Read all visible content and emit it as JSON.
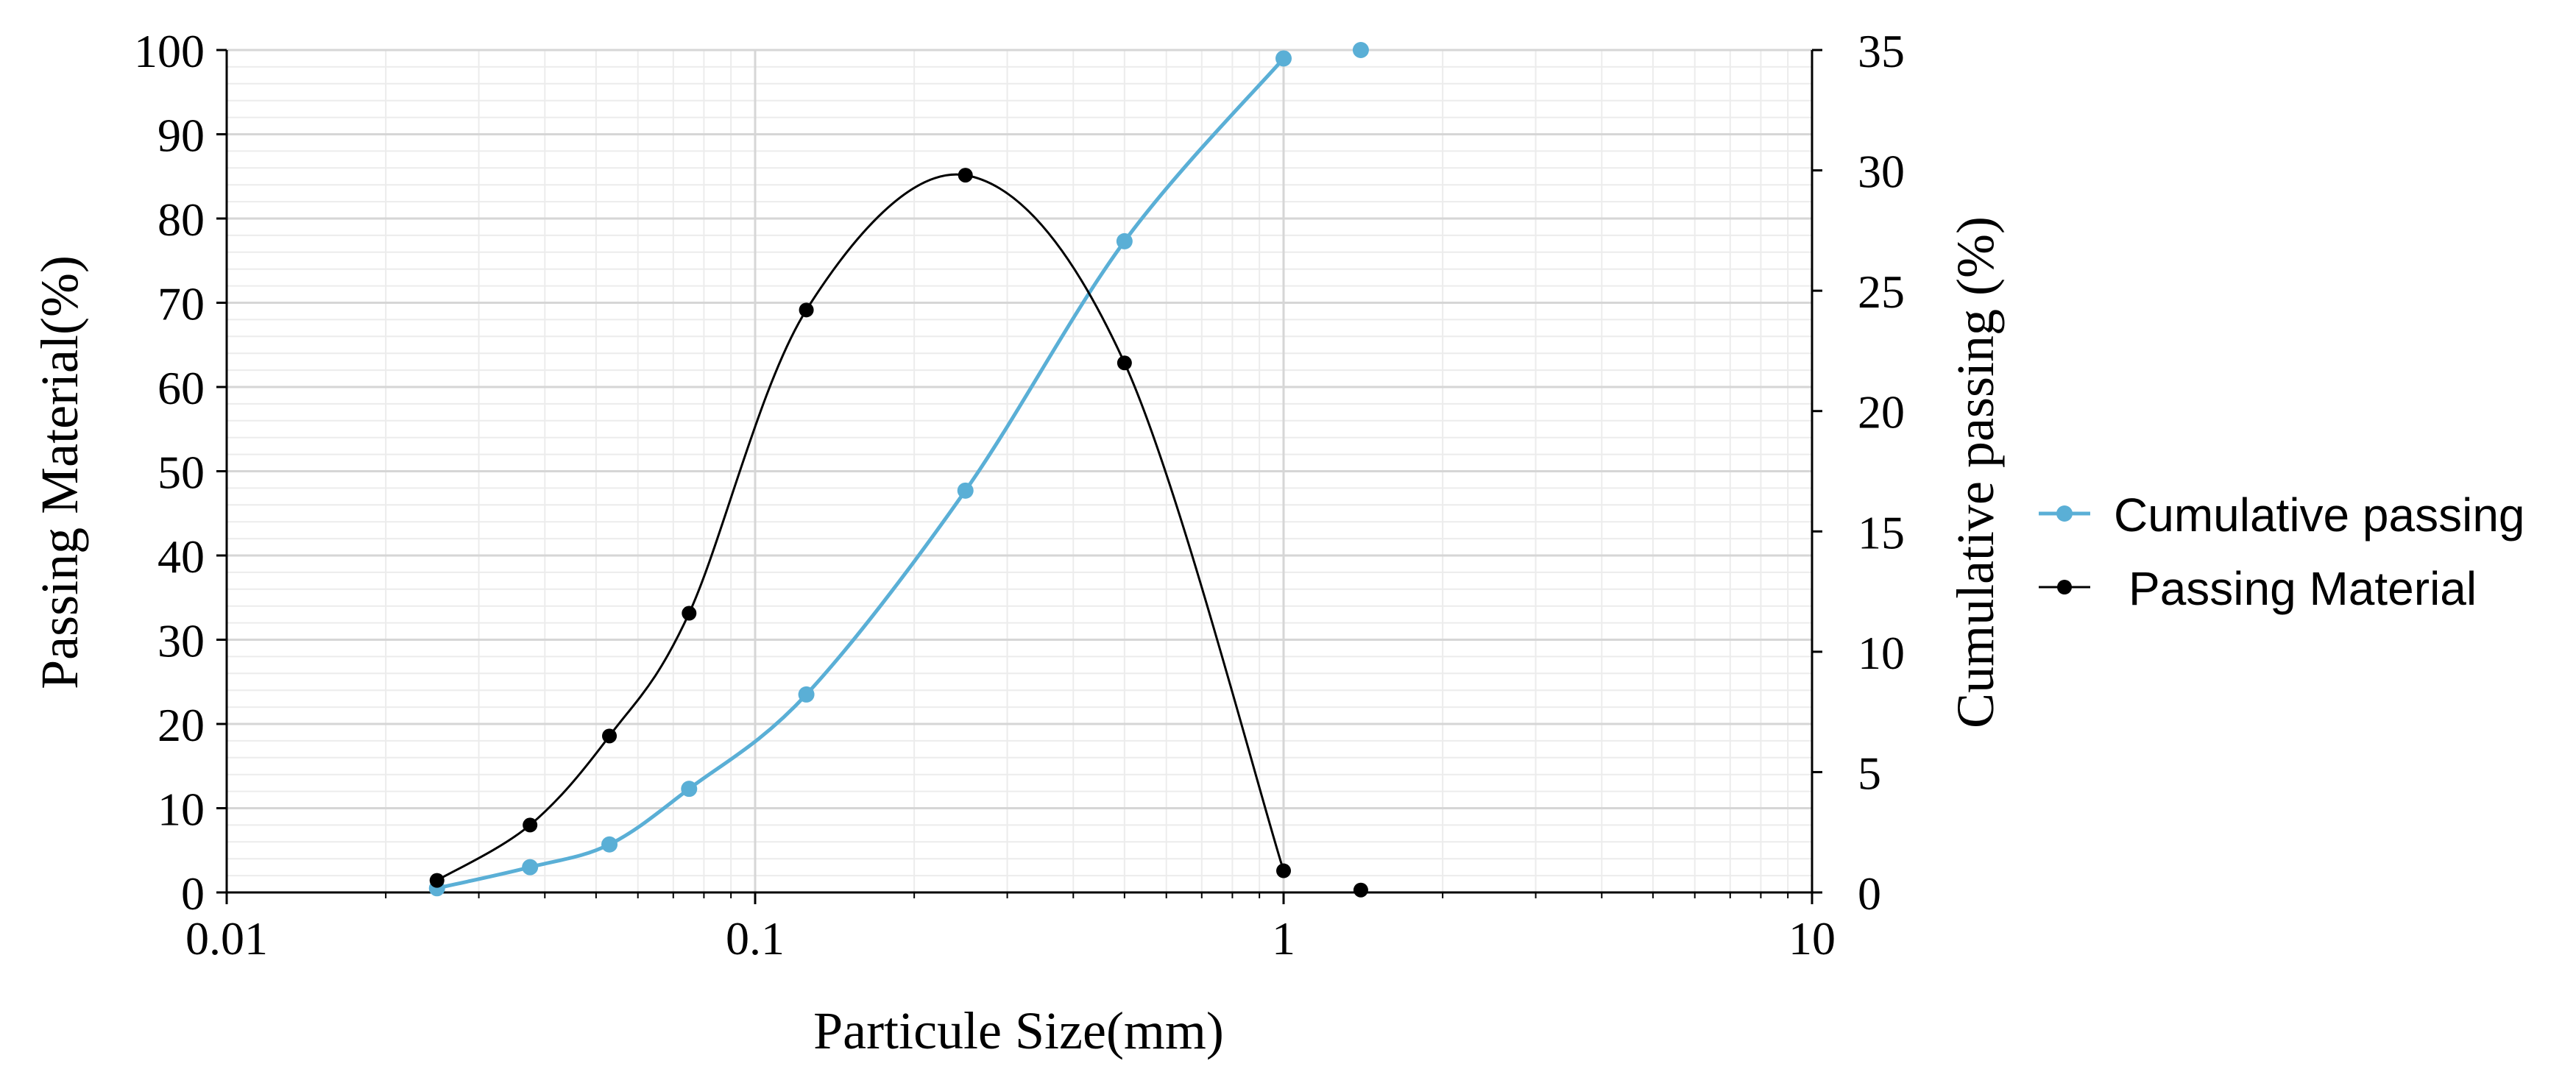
{
  "chart_data": {
    "type": "line",
    "xlabel": "Particule Size(mm)",
    "ylabel_left": "Passing Material(%)",
    "ylabel_right": "Cumulative passing (%)",
    "x_scale": "log",
    "xlim": [
      0.01,
      10
    ],
    "x_ticks": [
      0.01,
      0.1,
      1,
      10
    ],
    "x_tick_labels": [
      "0.01",
      "0.1",
      "1",
      "10"
    ],
    "ylim_left": [
      0,
      100
    ],
    "y_ticks_left": [
      0,
      10,
      20,
      30,
      40,
      50,
      60,
      70,
      80,
      90,
      100
    ],
    "y_tick_labels_left": [
      "0",
      "10",
      "20",
      "30",
      "40",
      "50",
      "60",
      "70",
      "80",
      "90",
      "100"
    ],
    "ylim_right": [
      0,
      35
    ],
    "y_ticks_right": [
      0,
      5,
      10,
      15,
      20,
      25,
      30,
      35
    ],
    "y_tick_labels_right": [
      "0",
      "5",
      "10",
      "15",
      "20",
      "25",
      "30",
      "35"
    ],
    "grid": true,
    "legend_position": "right",
    "series": [
      {
        "name": "Cumulative passing",
        "axis": "left",
        "color": "#5aafd6",
        "x": [
          0.025,
          0.0375,
          0.053,
          0.075,
          0.125,
          0.25,
          0.5,
          1,
          1.4
        ],
        "y": [
          0.5,
          3,
          5.7,
          12.3,
          23.5,
          47.7,
          77.3,
          99,
          100
        ]
      },
      {
        "name": "Passing Material",
        "axis": "right",
        "color": "#000000",
        "x": [
          0.025,
          0.0375,
          0.053,
          0.075,
          0.125,
          0.25,
          0.5,
          1,
          1.4
        ],
        "y": [
          0.5,
          2.8,
          6.5,
          11.6,
          24.2,
          29.8,
          22,
          0.9,
          0.1
        ]
      }
    ]
  }
}
